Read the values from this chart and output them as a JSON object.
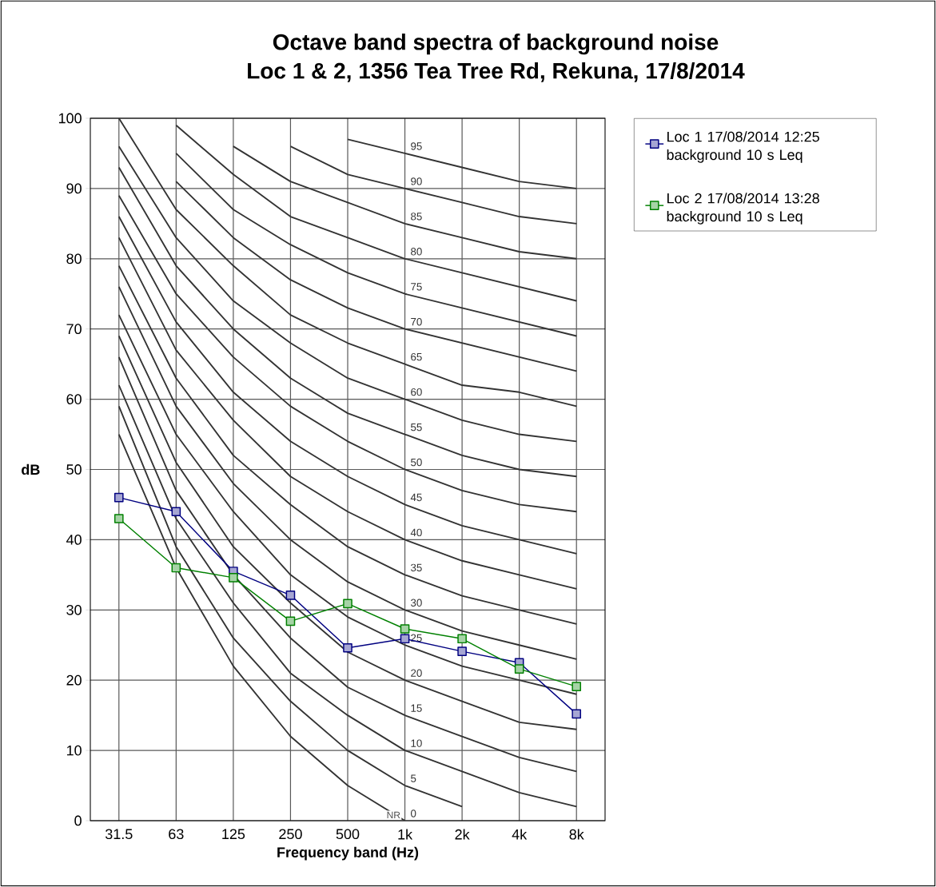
{
  "chart_data": {
    "type": "line",
    "title": "Octave band spectra of background noise",
    "subtitle": "Loc 1 & 2, 1356 Tea Tree Rd, Rekuna, 17/8/2014",
    "xlabel": "Frequency band (Hz)",
    "ylabel": "dB",
    "categories": [
      "31.5",
      "63",
      "125",
      "250",
      "500",
      "1k",
      "2k",
      "4k",
      "8k"
    ],
    "ylim": [
      0,
      100
    ],
    "yticks": [
      0,
      10,
      20,
      30,
      40,
      50,
      60,
      70,
      80,
      90,
      100
    ],
    "grid": true,
    "legend": "right",
    "annotations": [
      {
        "text": "NR",
        "x": "1k",
        "y": 0
      }
    ],
    "series": [
      {
        "name": "Loc 1 17/08/2014 12:25 background 10 s Leq",
        "color": "#000080",
        "marker": "square",
        "values": [
          46.0,
          44.0,
          35.5,
          32.1,
          24.6,
          25.9,
          24.1,
          22.5,
          15.2
        ]
      },
      {
        "name": "Loc 2 17/08/2014 13:28 background 10 s Leq",
        "color": "#008000",
        "marker": "square",
        "values": [
          43.0,
          36.0,
          34.6,
          28.4,
          30.9,
          27.3,
          25.9,
          21.6,
          19.1
        ]
      },
      {
        "name": "0",
        "color": "#333333",
        "marker": "none",
        "values": [
          55,
          36,
          22,
          12,
          5,
          0,
          null,
          null,
          null
        ]
      },
      {
        "name": "5",
        "color": "#333333",
        "marker": "none",
        "values": [
          59,
          39,
          26,
          17,
          10,
          5,
          2,
          null,
          null
        ]
      },
      {
        "name": "10",
        "color": "#333333",
        "marker": "none",
        "values": [
          62,
          43,
          31,
          21,
          15,
          10,
          7,
          4,
          2
        ]
      },
      {
        "name": "15",
        "color": "#333333",
        "marker": "none",
        "values": [
          66,
          47,
          35,
          26,
          19,
          15,
          12,
          9,
          7
        ]
      },
      {
        "name": "20",
        "color": "#333333",
        "marker": "none",
        "values": [
          69,
          51,
          39,
          31,
          24,
          20,
          17,
          14,
          13
        ]
      },
      {
        "name": "25",
        "color": "#333333",
        "marker": "none",
        "values": [
          72,
          55,
          44,
          35,
          29,
          25,
          22,
          20,
          18
        ]
      },
      {
        "name": "30",
        "color": "#333333",
        "marker": "none",
        "values": [
          76,
          59,
          48,
          40,
          34,
          30,
          27,
          25,
          23
        ]
      },
      {
        "name": "35",
        "color": "#333333",
        "marker": "none",
        "values": [
          79,
          63,
          52,
          45,
          39,
          35,
          32,
          30,
          28
        ]
      },
      {
        "name": "40",
        "color": "#333333",
        "marker": "none",
        "values": [
          83,
          67,
          57,
          49,
          44,
          40,
          37,
          35,
          33
        ]
      },
      {
        "name": "45",
        "color": "#333333",
        "marker": "none",
        "values": [
          86,
          71,
          61,
          54,
          49,
          45,
          42,
          40,
          38
        ]
      },
      {
        "name": "50",
        "color": "#333333",
        "marker": "none",
        "values": [
          89,
          75,
          66,
          59,
          54,
          50,
          47,
          45,
          44
        ]
      },
      {
        "name": "55",
        "color": "#333333",
        "marker": "none",
        "values": [
          93,
          79,
          70,
          63,
          58,
          55,
          52,
          50,
          49
        ]
      },
      {
        "name": "60",
        "color": "#333333",
        "marker": "none",
        "values": [
          96,
          83,
          74,
          68,
          63,
          60,
          57,
          55,
          54
        ]
      },
      {
        "name": "65",
        "color": "#333333",
        "marker": "none",
        "values": [
          100,
          87,
          79,
          72,
          68,
          65,
          62,
          61,
          59
        ]
      },
      {
        "name": "70",
        "color": "#333333",
        "marker": "none",
        "values": [
          null,
          91,
          83,
          77,
          73,
          70,
          68,
          66,
          64
        ]
      },
      {
        "name": "75",
        "color": "#333333",
        "marker": "none",
        "values": [
          null,
          95,
          87,
          82,
          78,
          75,
          73,
          71,
          69
        ]
      },
      {
        "name": "80",
        "color": "#333333",
        "marker": "none",
        "values": [
          null,
          99,
          92,
          86,
          83,
          80,
          78,
          76,
          74
        ]
      },
      {
        "name": "85",
        "color": "#333333",
        "marker": "none",
        "values": [
          null,
          null,
          96,
          91,
          88,
          85,
          83,
          81,
          80
        ]
      },
      {
        "name": "90",
        "color": "#333333",
        "marker": "none",
        "values": [
          null,
          null,
          null,
          96,
          92,
          90,
          88,
          86,
          85
        ]
      },
      {
        "name": "95",
        "color": "#333333",
        "marker": "none",
        "values": [
          null,
          null,
          null,
          null,
          97,
          95,
          93,
          91,
          90
        ]
      }
    ]
  }
}
